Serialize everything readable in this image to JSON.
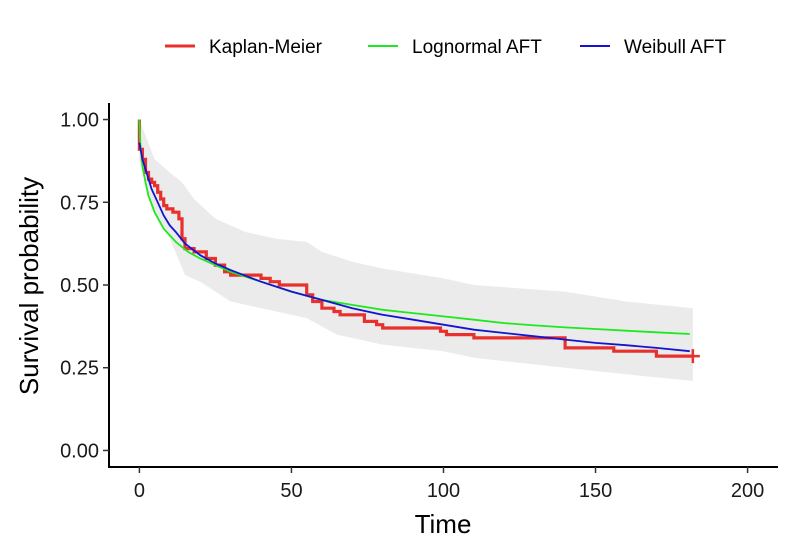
{
  "chart_data": {
    "type": "line",
    "title": "",
    "xlabel": "Time",
    "ylabel": "Survival probability",
    "xlim": [
      -10,
      210
    ],
    "ylim": [
      -0.05,
      1.05
    ],
    "x_ticks": [
      0,
      50,
      100,
      150,
      200
    ],
    "y_ticks": [
      0.0,
      0.25,
      0.5,
      0.75,
      1.0
    ],
    "x_tick_labels": [
      "0",
      "50",
      "100",
      "150",
      "200"
    ],
    "y_tick_labels": [
      "0.00",
      "0.25",
      "0.50",
      "0.75",
      "1.00"
    ],
    "grid": false,
    "legend_position": "top",
    "legend": [
      "Kaplan-Meier",
      "Lognormal AFT",
      "Weibull AFT"
    ],
    "colors": {
      "kaplan_meier": "#e8302c",
      "lognormal": "#1ee81e",
      "weibull": "#1414d2",
      "ci_band": "#ebebeb"
    },
    "series": [
      {
        "name": "Kaplan-Meier",
        "kind": "step",
        "censor_mark": [
          182,
          0.285
        ],
        "points": [
          [
            0,
            1.0
          ],
          [
            0,
            0.91
          ],
          [
            1,
            0.91
          ],
          [
            1,
            0.88
          ],
          [
            2,
            0.88
          ],
          [
            2,
            0.84
          ],
          [
            3,
            0.84
          ],
          [
            3,
            0.82
          ],
          [
            4,
            0.82
          ],
          [
            4,
            0.81
          ],
          [
            5,
            0.81
          ],
          [
            5,
            0.8
          ],
          [
            6,
            0.8
          ],
          [
            6,
            0.78
          ],
          [
            7,
            0.78
          ],
          [
            7,
            0.76
          ],
          [
            8,
            0.76
          ],
          [
            8,
            0.74
          ],
          [
            9,
            0.74
          ],
          [
            9,
            0.73
          ],
          [
            11,
            0.73
          ],
          [
            11,
            0.72
          ],
          [
            13,
            0.72
          ],
          [
            13,
            0.7
          ],
          [
            14,
            0.7
          ],
          [
            14,
            0.64
          ],
          [
            15,
            0.64
          ],
          [
            15,
            0.61
          ],
          [
            18,
            0.61
          ],
          [
            18,
            0.6
          ],
          [
            22,
            0.6
          ],
          [
            22,
            0.58
          ],
          [
            25,
            0.58
          ],
          [
            25,
            0.56
          ],
          [
            28,
            0.56
          ],
          [
            28,
            0.54
          ],
          [
            30,
            0.54
          ],
          [
            30,
            0.53
          ],
          [
            40,
            0.53
          ],
          [
            40,
            0.52
          ],
          [
            43,
            0.52
          ],
          [
            43,
            0.51
          ],
          [
            46,
            0.51
          ],
          [
            46,
            0.5
          ],
          [
            55,
            0.5
          ],
          [
            55,
            0.47
          ],
          [
            57,
            0.47
          ],
          [
            57,
            0.45
          ],
          [
            60,
            0.45
          ],
          [
            60,
            0.43
          ],
          [
            64,
            0.43
          ],
          [
            64,
            0.42
          ],
          [
            66,
            0.42
          ],
          [
            66,
            0.41
          ],
          [
            74,
            0.41
          ],
          [
            74,
            0.39
          ],
          [
            78,
            0.39
          ],
          [
            78,
            0.38
          ],
          [
            80,
            0.38
          ],
          [
            80,
            0.37
          ],
          [
            99,
            0.37
          ],
          [
            99,
            0.36
          ],
          [
            101,
            0.36
          ],
          [
            101,
            0.35
          ],
          [
            110,
            0.35
          ],
          [
            110,
            0.34
          ],
          [
            140,
            0.34
          ],
          [
            140,
            0.31
          ],
          [
            156,
            0.31
          ],
          [
            156,
            0.3
          ],
          [
            170,
            0.3
          ],
          [
            170,
            0.285
          ],
          [
            182,
            0.285
          ]
        ]
      },
      {
        "name": "Lognormal AFT",
        "kind": "line",
        "points": [
          [
            0,
            1.0
          ],
          [
            0.3,
            0.93
          ],
          [
            1,
            0.86
          ],
          [
            2,
            0.81
          ],
          [
            3,
            0.77
          ],
          [
            5,
            0.72
          ],
          [
            8,
            0.67
          ],
          [
            12,
            0.63
          ],
          [
            16,
            0.6
          ],
          [
            20,
            0.58
          ],
          [
            30,
            0.54
          ],
          [
            40,
            0.51
          ],
          [
            50,
            0.48
          ],
          [
            60,
            0.455
          ],
          [
            70,
            0.44
          ],
          [
            80,
            0.425
          ],
          [
            90,
            0.415
          ],
          [
            100,
            0.405
          ],
          [
            110,
            0.395
          ],
          [
            120,
            0.385
          ],
          [
            130,
            0.378
          ],
          [
            140,
            0.372
          ],
          [
            150,
            0.367
          ],
          [
            160,
            0.362
          ],
          [
            170,
            0.357
          ],
          [
            181,
            0.352
          ]
        ]
      },
      {
        "name": "Weibull AFT",
        "kind": "line",
        "points": [
          [
            0,
            0.93
          ],
          [
            1,
            0.88
          ],
          [
            2,
            0.85
          ],
          [
            4,
            0.79
          ],
          [
            6,
            0.75
          ],
          [
            8,
            0.71
          ],
          [
            10,
            0.68
          ],
          [
            12,
            0.66
          ],
          [
            15,
            0.625
          ],
          [
            20,
            0.59
          ],
          [
            25,
            0.565
          ],
          [
            30,
            0.545
          ],
          [
            40,
            0.51
          ],
          [
            50,
            0.48
          ],
          [
            60,
            0.455
          ],
          [
            70,
            0.43
          ],
          [
            80,
            0.41
          ],
          [
            90,
            0.395
          ],
          [
            100,
            0.38
          ],
          [
            110,
            0.365
          ],
          [
            120,
            0.355
          ],
          [
            130,
            0.345
          ],
          [
            140,
            0.335
          ],
          [
            150,
            0.325
          ],
          [
            160,
            0.318
          ],
          [
            170,
            0.31
          ],
          [
            181,
            0.3
          ]
        ]
      }
    ],
    "confidence_band": {
      "name": "Kaplan-Meier 95% CI",
      "upper": [
        [
          0,
          1.0
        ],
        [
          5,
          0.88
        ],
        [
          10,
          0.84
        ],
        [
          14,
          0.81
        ],
        [
          18,
          0.76
        ],
        [
          25,
          0.7
        ],
        [
          35,
          0.66
        ],
        [
          45,
          0.64
        ],
        [
          55,
          0.63
        ],
        [
          60,
          0.6
        ],
        [
          70,
          0.57
        ],
        [
          80,
          0.55
        ],
        [
          100,
          0.52
        ],
        [
          110,
          0.5
        ],
        [
          140,
          0.48
        ],
        [
          160,
          0.45
        ],
        [
          182,
          0.43
        ]
      ],
      "lower": [
        [
          0,
          0.87
        ],
        [
          5,
          0.72
        ],
        [
          10,
          0.64
        ],
        [
          15,
          0.53
        ],
        [
          20,
          0.51
        ],
        [
          30,
          0.45
        ],
        [
          45,
          0.42
        ],
        [
          55,
          0.4
        ],
        [
          65,
          0.35
        ],
        [
          80,
          0.32
        ],
        [
          100,
          0.3
        ],
        [
          110,
          0.28
        ],
        [
          140,
          0.25
        ],
        [
          160,
          0.23
        ],
        [
          182,
          0.21
        ]
      ]
    }
  }
}
